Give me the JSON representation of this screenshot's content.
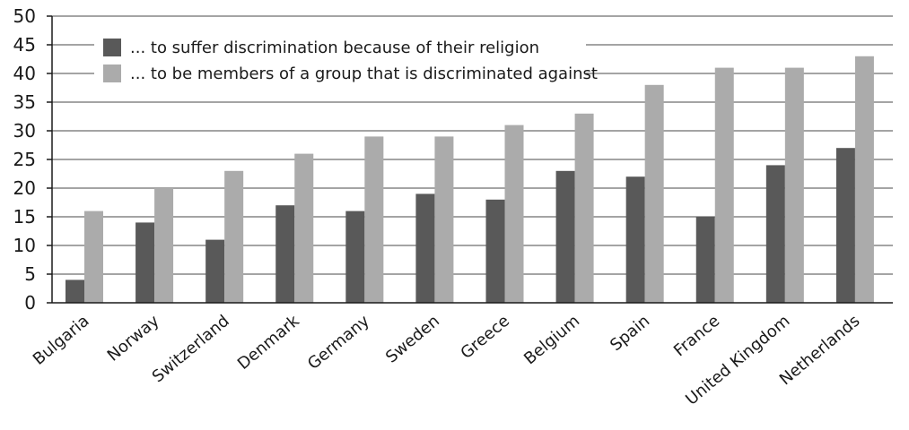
{
  "chart_data": {
    "type": "bar",
    "categories": [
      "Bulgaria",
      "Norway",
      "Switzerland",
      "Denmark",
      "Germany",
      "Sweden",
      "Greece",
      "Belgium",
      "Spain",
      "France",
      "United Kingdom",
      "Netherlands"
    ],
    "series": [
      {
        "name": "... to suffer discrimination because of their religion",
        "color": "#595959",
        "values": [
          4,
          14,
          11,
          17,
          16,
          19,
          18,
          23,
          22,
          15,
          24,
          27
        ]
      },
      {
        "name": "... to be members of a group that is discriminated against",
        "color": "#ababab",
        "values": [
          16,
          20,
          23,
          26,
          29,
          29,
          31,
          33,
          38,
          41,
          41,
          43
        ]
      }
    ],
    "ylim": [
      0,
      50
    ],
    "yticks": [
      0,
      5,
      10,
      15,
      20,
      25,
      30,
      35,
      40,
      45,
      50
    ],
    "grid": true,
    "legend_position": "top-left",
    "title": "",
    "xlabel": "",
    "ylabel": ""
  }
}
